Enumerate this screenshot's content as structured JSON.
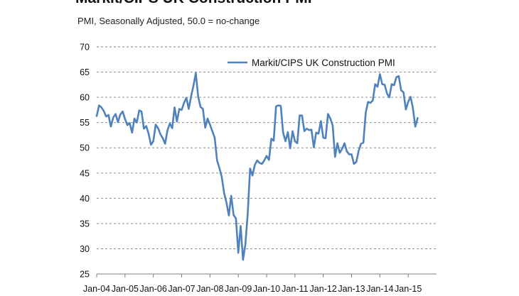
{
  "chart_data": {
    "type": "line",
    "title": "Markit/CIPS UK Construction PMI",
    "subtitle": "PMI, Seasonally Adjusted, 50.0 = no-change",
    "xlabel": "",
    "ylabel": "",
    "ylim": [
      25,
      70
    ],
    "yticks": [
      25,
      30,
      35,
      40,
      45,
      50,
      55,
      60,
      65,
      70
    ],
    "xticks": [
      "Jan-04",
      "Jan-05",
      "Jan-06",
      "Jan-07",
      "Jan-08",
      "Jan-09",
      "Jan-10",
      "Jan-11",
      "Jan-12",
      "Jan-13",
      "Jan-14",
      "Jan-15"
    ],
    "grid": "horizontal dashed",
    "legend": "top-right",
    "colors": {
      "series": "#4f81bd",
      "grid": "#7f7f7f",
      "axis": "#7f7f7f"
    },
    "x_start": "Jan-04",
    "frequency": "monthly",
    "series": [
      {
        "name": "Markit/CIPS UK Construction PMI",
        "values": [
          56.3,
          58.4,
          58.0,
          57.3,
          56.2,
          56.5,
          54.2,
          56.0,
          56.7,
          55.1,
          56.6,
          57.2,
          55.7,
          54.5,
          54.9,
          53.0,
          55.8,
          55.0,
          57.4,
          57.2,
          53.8,
          54.3,
          52.8,
          50.6,
          51.3,
          54.6,
          53.9,
          52.7,
          51.9,
          50.8,
          53.5,
          54.8,
          53.9,
          58.0,
          55.2,
          57.7,
          57.5,
          58.9,
          59.9,
          57.7,
          60.2,
          62.3,
          64.8,
          60.1,
          58.1,
          57.7,
          54.0,
          55.8,
          54.6,
          53.3,
          52.0,
          47.5,
          46.0,
          44.2,
          41.0,
          39.1,
          36.6,
          40.5,
          36.7,
          36.0,
          29.2,
          34.5,
          27.8,
          30.9,
          37.0,
          45.9,
          44.5,
          46.6,
          47.5,
          47.0,
          46.8,
          47.5,
          48.4,
          47.6,
          51.8,
          51.4,
          58.2,
          58.4,
          58.3,
          53.0,
          51.3,
          53.1,
          49.9,
          53.3,
          51.3,
          50.9,
          56.4,
          56.4,
          53.3,
          53.8,
          53.5,
          53.6,
          50.1,
          53.0,
          52.8,
          55.3,
          52.0,
          51.9,
          56.7,
          55.8,
          54.4,
          48.2,
          50.9,
          49.0,
          49.8,
          50.9,
          49.3,
          48.7,
          48.7,
          46.8,
          47.2,
          49.4,
          50.8,
          51.0,
          57.0,
          59.1,
          58.9,
          59.4,
          62.6,
          62.1,
          64.6,
          62.6,
          62.5,
          60.8,
          60.0,
          62.6,
          62.4,
          64.0,
          64.2,
          61.4,
          61.0,
          57.6,
          59.1,
          60.1,
          57.8,
          54.2,
          55.9
        ]
      }
    ]
  }
}
